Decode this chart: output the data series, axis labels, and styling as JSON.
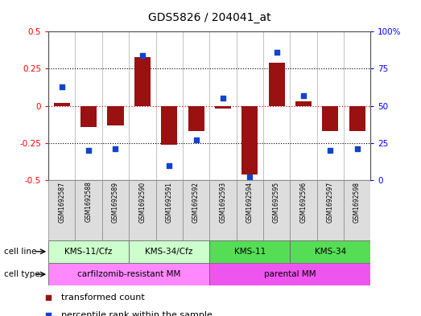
{
  "title": "GDS5826 / 204041_at",
  "samples": [
    "GSM1692587",
    "GSM1692588",
    "GSM1692589",
    "GSM1692590",
    "GSM1692591",
    "GSM1692592",
    "GSM1692593",
    "GSM1692594",
    "GSM1692595",
    "GSM1692596",
    "GSM1692597",
    "GSM1692598"
  ],
  "transformed_count": [
    0.02,
    -0.14,
    -0.13,
    0.33,
    -0.26,
    -0.17,
    -0.02,
    -0.46,
    0.29,
    0.03,
    -0.17,
    -0.17
  ],
  "percentile_rank": [
    63,
    20,
    21,
    84,
    10,
    27,
    55,
    2,
    86,
    57,
    20,
    21
  ],
  "bar_color": "#991111",
  "dot_color": "#1144cc",
  "bar_width": 0.6,
  "ylim_left": [
    -0.5,
    0.5
  ],
  "ylim_right": [
    0,
    100
  ],
  "yticks_left": [
    -0.5,
    -0.25,
    0.0,
    0.25,
    0.5
  ],
  "yticks_right": [
    0,
    25,
    50,
    75,
    100
  ],
  "yticklabels_right": [
    "0",
    "25",
    "50",
    "75",
    "100%"
  ],
  "cell_line_groups": [
    {
      "label": "KMS-11/Cfz",
      "start": 0,
      "end": 3,
      "color": "#ccffcc"
    },
    {
      "label": "KMS-34/Cfz",
      "start": 3,
      "end": 6,
      "color": "#ccffcc"
    },
    {
      "label": "KMS-11",
      "start": 6,
      "end": 9,
      "color": "#55dd55"
    },
    {
      "label": "KMS-34",
      "start": 9,
      "end": 12,
      "color": "#55dd55"
    }
  ],
  "cell_type_groups": [
    {
      "label": "carfilzomib-resistant MM",
      "start": 0,
      "end": 6,
      "color": "#ff88ff"
    },
    {
      "label": "parental MM",
      "start": 6,
      "end": 12,
      "color": "#ee55ee"
    }
  ],
  "cell_line_row_label": "cell line",
  "cell_type_row_label": "cell type",
  "sample_bg_color": "#dddddd",
  "zero_line_color": "#cc2222",
  "plot_bg": "white"
}
